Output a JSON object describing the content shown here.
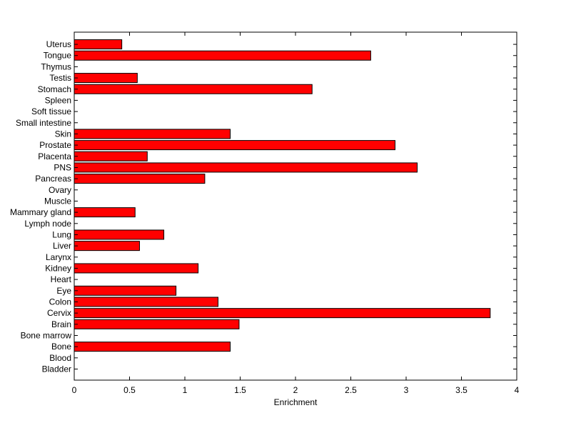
{
  "chart_data": {
    "type": "bar",
    "orientation": "horizontal",
    "categories": [
      "Bladder",
      "Blood",
      "Bone",
      "Bone marrow",
      "Brain",
      "Cervix",
      "Colon",
      "Eye",
      "Heart",
      "Kidney",
      "Larynx",
      "Liver",
      "Lung",
      "Lymph node",
      "Mammary gland",
      "Muscle",
      "Ovary",
      "Pancreas",
      "PNS",
      "Placenta",
      "Prostate",
      "Skin",
      "Small intestine",
      "Soft tissue",
      "Spleen",
      "Stomach",
      "Testis",
      "Thymus",
      "Tongue",
      "Uterus"
    ],
    "values": [
      0,
      0,
      1.41,
      0,
      1.49,
      3.76,
      1.3,
      0.92,
      0,
      1.12,
      0,
      0.59,
      0.81,
      0,
      0.55,
      0,
      0,
      1.18,
      3.1,
      0.66,
      2.9,
      1.41,
      0,
      0,
      0,
      2.15,
      0.57,
      0,
      2.68,
      0.43
    ],
    "title": "",
    "xlabel": "Enrichment",
    "ylabel": "",
    "xlim": [
      0,
      4
    ],
    "xticks": [
      "0",
      "0.5",
      "1",
      "1.5",
      "2",
      "2.5",
      "3",
      "3.5",
      "4"
    ],
    "grid": false,
    "colors": {
      "bar_fill": "#ff0000",
      "bar_edge": "#000000",
      "axis": "#000000",
      "background": "#ffffff"
    }
  }
}
